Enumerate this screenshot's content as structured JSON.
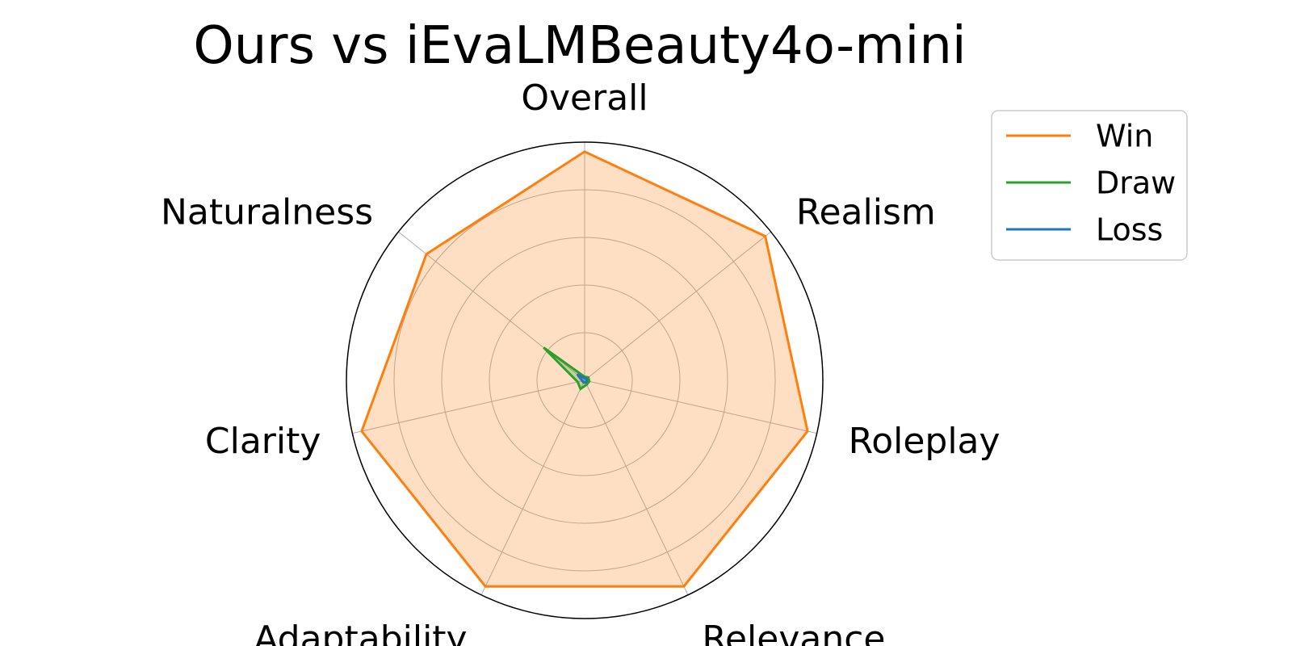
{
  "chart_data": {
    "type": "radar",
    "title": "Ours vs iEvaLMBeauty4o-mini",
    "axes": [
      "Overall",
      "Realism",
      "Roleplay",
      "Relevance",
      "Adaptability",
      "Clarity",
      "Naturalness"
    ],
    "rmax": 1.0,
    "rings": [
      0.2,
      0.4,
      0.6,
      0.8,
      1.0
    ],
    "grid": true,
    "legend_position": "top-right",
    "series": [
      {
        "name": "Win",
        "color": "#ff7f0e",
        "fill": true,
        "values": [
          0.96,
          0.97,
          0.96,
          0.96,
          0.96,
          0.96,
          0.85
        ]
      },
      {
        "name": "Draw",
        "color": "#2ca02c",
        "fill": true,
        "values": [
          0.015,
          0.02,
          0.02,
          0.02,
          0.04,
          0.03,
          0.22
        ]
      },
      {
        "name": "Loss",
        "color": "#1f77b4",
        "fill": true,
        "values": [
          0.01,
          0.01,
          0.01,
          0.01,
          0.01,
          0.01,
          0.04
        ]
      }
    ]
  }
}
